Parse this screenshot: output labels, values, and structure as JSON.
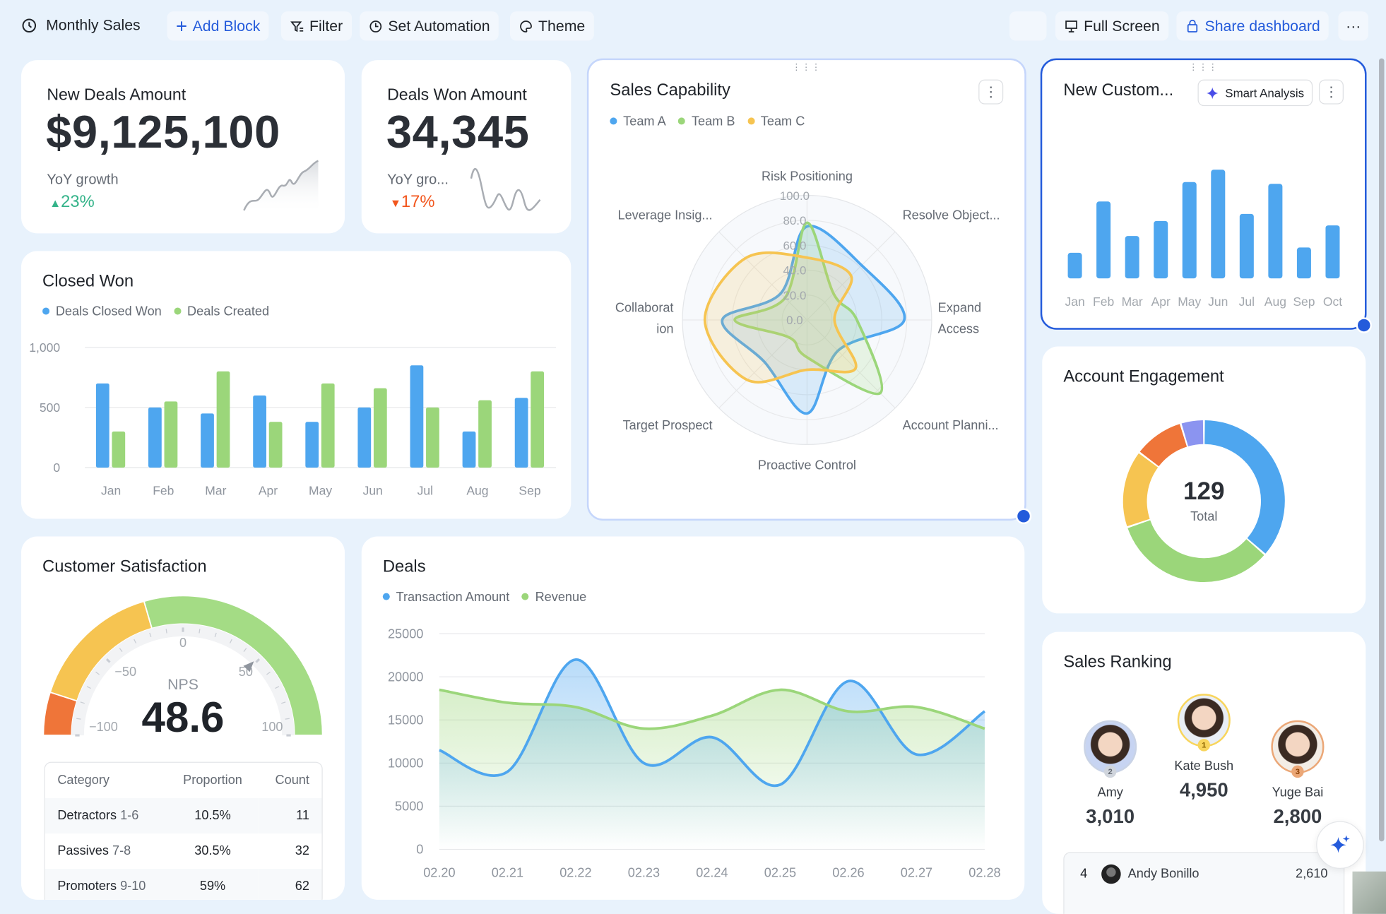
{
  "header": {
    "title": "Monthly Sales",
    "add_block": "Add Block",
    "filter": "Filter",
    "set_automation": "Set Automation",
    "theme": "Theme",
    "full_screen": "Full Screen",
    "share": "Share dashboard",
    "more": "···"
  },
  "colors": {
    "accent": "#245bdb",
    "blue": "#4ea6ef",
    "green": "#9bd67a",
    "yellow": "#f6c451",
    "orange": "#ef7539",
    "purple": "#8b94f0",
    "up": "#34b389",
    "down": "#f2561d"
  },
  "new_deals": {
    "title": "New Deals Amount",
    "value": "$9,125,100",
    "growth_label": "YoY growth",
    "growth": "23%",
    "direction": "up"
  },
  "deals_won": {
    "title": "Deals Won Amount",
    "value": "34,345",
    "growth_label": "YoY gro...",
    "growth": "17%",
    "direction": "down"
  },
  "sales_capability": {
    "title": "Sales Capability",
    "menu": "⋮",
    "chart_data": {
      "type": "radar",
      "axes": [
        "Risk Positioning",
        "Resolve Object...",
        "Expand Access",
        "Account Planni...",
        "Proactive Control",
        "Target Prospect",
        "Collaboration",
        "Leverage Insig..."
      ],
      "ticks": [
        "0.0",
        "20.0",
        "40.0",
        "60.0",
        "80.0",
        "100.0"
      ],
      "range": [
        0,
        100
      ],
      "series": [
        {
          "name": "Team A",
          "color": "#4ea6ef",
          "values": [
            75,
            62,
            78,
            35,
            75,
            48,
            68,
            30
          ]
        },
        {
          "name": "Team B",
          "color": "#9bd67a",
          "values": [
            78,
            30,
            40,
            83,
            30,
            20,
            58,
            25
          ]
        },
        {
          "name": "Team C",
          "color": "#f6c451",
          "values": [
            50,
            50,
            22,
            55,
            40,
            68,
            82,
            70
          ]
        }
      ]
    }
  },
  "new_customers": {
    "title": "New Custom...",
    "smart_analysis": "Smart Analysis",
    "menu": "⋮",
    "chart_data": {
      "type": "bar",
      "categories": [
        "Jan",
        "Feb",
        "Mar",
        "Apr",
        "May",
        "Jun",
        "Jul",
        "Aug",
        "Sep",
        "Oct"
      ],
      "values": [
        29,
        87,
        48,
        65,
        109,
        123,
        73,
        107,
        35,
        60
      ],
      "color": "#4ea6ef"
    }
  },
  "closed_won": {
    "title": "Closed Won",
    "chart_data": {
      "type": "bar",
      "categories": [
        "Jan",
        "Feb",
        "Mar",
        "Apr",
        "May",
        "Jun",
        "Jul",
        "Aug",
        "Sep"
      ],
      "ylim": [
        0,
        1000
      ],
      "yticks": [
        "0",
        "500",
        "1,000"
      ],
      "ytick_values": [
        0,
        500,
        1000
      ],
      "grid": true,
      "series": [
        {
          "name": "Deals Closed Won",
          "color": "#4ea6ef",
          "values": [
            700,
            500,
            450,
            600,
            380,
            500,
            850,
            300,
            580
          ]
        },
        {
          "name": "Deals Created",
          "color": "#9bd67a",
          "values": [
            300,
            550,
            800,
            380,
            700,
            660,
            500,
            560,
            800
          ]
        }
      ]
    }
  },
  "account_engagement": {
    "title": "Account Engagement",
    "total": "129",
    "total_label": "Total",
    "chart_data": {
      "type": "pie",
      "values": [
        47,
        43,
        20,
        13,
        6
      ],
      "colors": [
        "#4ea6ef",
        "#9bd67a",
        "#f6c451",
        "#ef7539",
        "#8b94f0"
      ]
    }
  },
  "customer_satisfaction": {
    "title": "Customer Satisfaction",
    "gauge_label": "NPS",
    "value": "48.6",
    "value_num": 48.6,
    "gauge_ticks": [
      "−100",
      "−50",
      "0",
      "50",
      "100"
    ],
    "range": [
      -100,
      100
    ],
    "bands": [
      {
        "from": -100,
        "to": -80,
        "color": "#ef7539"
      },
      {
        "from": -80,
        "to": -18,
        "color": "#f6c451"
      },
      {
        "from": -18,
        "to": 100,
        "color": "#a4dc85"
      }
    ],
    "table": {
      "headers": [
        "Category",
        "Proportion",
        "Count"
      ],
      "rows": [
        {
          "name": "Detractors",
          "range": "1-6",
          "proportion": "10.5%",
          "count": "11"
        },
        {
          "name": "Passives",
          "range": "7-8",
          "proportion": "30.5%",
          "count": "32"
        },
        {
          "name": "Promoters",
          "range": "9-10",
          "proportion": "59%",
          "count": "62"
        }
      ]
    }
  },
  "deals": {
    "title": "Deals",
    "chart_data": {
      "type": "area",
      "x": [
        "02.20",
        "02.21",
        "02.22",
        "02.23",
        "02.24",
        "02.25",
        "02.26",
        "02.27",
        "02.28"
      ],
      "ylim": [
        0,
        25000
      ],
      "yticks": [
        "0",
        "5000",
        "10000",
        "15000",
        "20000",
        "25000"
      ],
      "grid": true,
      "series": [
        {
          "name": "Transaction Amount",
          "color": "#4ea6ef",
          "values": [
            11500,
            9000,
            22000,
            10000,
            13000,
            7500,
            19500,
            11000,
            16000
          ]
        },
        {
          "name": "Revenue",
          "color": "#9bd67a",
          "values": [
            18500,
            17000,
            16500,
            14000,
            15500,
            18500,
            16000,
            16500,
            14000
          ]
        }
      ]
    }
  },
  "sales_ranking": {
    "title": "Sales Ranking",
    "podium": [
      {
        "rank": "2",
        "name": "Amy",
        "value": "3,010"
      },
      {
        "rank": "1",
        "name": "Kate Bush",
        "value": "4,950"
      },
      {
        "rank": "3",
        "name": "Yuge Bai",
        "value": "2,800"
      }
    ],
    "list": [
      {
        "rank": "4",
        "name": "Andy Bonillo",
        "value": "2,610"
      }
    ]
  }
}
